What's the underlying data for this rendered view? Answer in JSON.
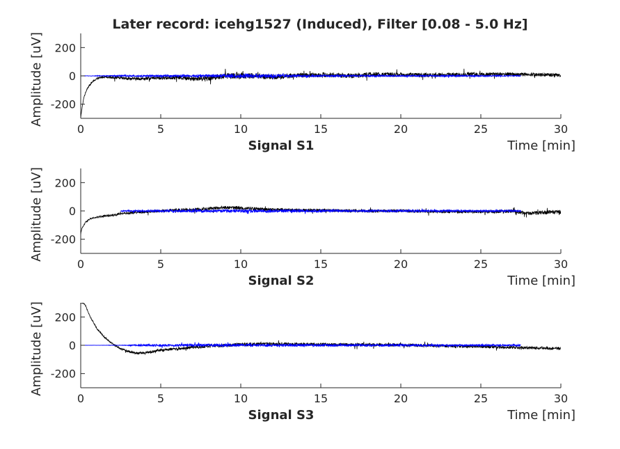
{
  "chart_data": {
    "type": "line",
    "title": "Later record: icehg1527 (Induced), Filter [0.08 - 5.0 Hz]",
    "x_unit_label": "Time [min]",
    "xlim": [
      0,
      30
    ],
    "xticks": [
      0,
      5,
      10,
      15,
      20,
      25,
      30
    ],
    "ylim": [
      -300,
      300
    ],
    "yticks": [
      -200,
      0,
      200
    ],
    "ylabel": "Amplitude [uV]",
    "colors": {
      "raw": "#000000",
      "filtered": "#0000ff",
      "axis": "#262626"
    },
    "panels": [
      {
        "xlabel": "Signal S1",
        "series": [
          {
            "color": "raw",
            "start_min": 0,
            "end_min": 30,
            "trend": [
              [
                0,
                -300
              ],
              [
                0.05,
                -250
              ],
              [
                0.2,
                -150
              ],
              [
                0.4,
                -90
              ],
              [
                0.7,
                -45
              ],
              [
                1,
                -20
              ],
              [
                1.5,
                -5
              ],
              [
                2,
                -10
              ],
              [
                2.5,
                -15
              ],
              [
                3,
                -20
              ],
              [
                4,
                -20
              ],
              [
                5,
                -15
              ],
              [
                6,
                -10
              ],
              [
                7,
                -20
              ],
              [
                8,
                -15
              ],
              [
                9,
                0
              ],
              [
                10,
                0
              ],
              [
                11,
                0
              ],
              [
                12,
                -10
              ],
              [
                13,
                0
              ],
              [
                14,
                5
              ],
              [
                15,
                8
              ],
              [
                16,
                5
              ],
              [
                17,
                0
              ],
              [
                18,
                10
              ],
              [
                20,
                8
              ],
              [
                22,
                5
              ],
              [
                24,
                10
              ],
              [
                26,
                12
              ],
              [
                28,
                10
              ],
              [
                30,
                5
              ]
            ],
            "noise": [
              [
                0,
                4
              ],
              [
                2,
                10
              ],
              [
                5,
                12
              ],
              [
                9,
                20
              ],
              [
                10,
                22
              ],
              [
                12,
                18
              ],
              [
                18,
                16
              ],
              [
                24,
                14
              ],
              [
                30,
                12
              ]
            ]
          },
          {
            "color": "filtered",
            "start_min": 0,
            "end_min": 27.5,
            "trend": [
              [
                0,
                0
              ],
              [
                27.5,
                0
              ]
            ],
            "noise": [
              [
                0,
                0.5
              ],
              [
                1,
                2
              ],
              [
                3,
                5
              ],
              [
                7,
                8
              ],
              [
                9,
                12
              ],
              [
                10,
                15
              ],
              [
                11,
                14
              ],
              [
                12,
                11
              ],
              [
                14,
                8
              ],
              [
                17,
                6
              ],
              [
                20,
                5
              ],
              [
                23,
                5
              ],
              [
                26,
                4
              ],
              [
                27.5,
                3
              ]
            ]
          }
        ]
      },
      {
        "xlabel": "Signal S2",
        "series": [
          {
            "color": "raw",
            "start_min": 0,
            "end_min": 30,
            "trend": [
              [
                0,
                -170
              ],
              [
                0.05,
                -130
              ],
              [
                0.3,
                -80
              ],
              [
                0.6,
                -55
              ],
              [
                1,
                -45
              ],
              [
                1.5,
                -35
              ],
              [
                2,
                -30
              ],
              [
                2.5,
                -20
              ],
              [
                3,
                -15
              ],
              [
                4,
                -5
              ],
              [
                5,
                0
              ],
              [
                6,
                5
              ],
              [
                7,
                8
              ],
              [
                8,
                15
              ],
              [
                9,
                25
              ],
              [
                10,
                20
              ],
              [
                11,
                15
              ],
              [
                12,
                8
              ],
              [
                14,
                5
              ],
              [
                16,
                3
              ],
              [
                18,
                0
              ],
              [
                20,
                0
              ],
              [
                22,
                -3
              ],
              [
                24,
                -5
              ],
              [
                26,
                -5
              ],
              [
                27,
                -3
              ],
              [
                28,
                -15
              ],
              [
                29,
                -10
              ],
              [
                30,
                -8
              ]
            ],
            "noise": [
              [
                0,
                4
              ],
              [
                2,
                8
              ],
              [
                5,
                10
              ],
              [
                10,
                12
              ],
              [
                20,
                10
              ],
              [
                27,
                12
              ],
              [
                30,
                14
              ]
            ]
          },
          {
            "color": "filtered",
            "start_min": 2.5,
            "end_min": 27.5,
            "trend": [
              [
                2.5,
                0
              ],
              [
                27.5,
                0
              ]
            ],
            "noise": [
              [
                2.5,
                3
              ],
              [
                4,
                8
              ],
              [
                8,
                10
              ],
              [
                12,
                10
              ],
              [
                18,
                8
              ],
              [
                22,
                8
              ],
              [
                27.5,
                6
              ]
            ]
          }
        ]
      },
      {
        "xlabel": "Signal S3",
        "series": [
          {
            "color": "raw",
            "start_min": 0,
            "end_min": 30,
            "trend": [
              [
                0,
                300
              ],
              [
                0.15,
                300
              ],
              [
                0.3,
                280
              ],
              [
                0.6,
                200
              ],
              [
                1,
                120
              ],
              [
                1.5,
                55
              ],
              [
                2,
                10
              ],
              [
                2.5,
                -25
              ],
              [
                3,
                -45
              ],
              [
                3.5,
                -55
              ],
              [
                4,
                -55
              ],
              [
                5,
                -35
              ],
              [
                6,
                -25
              ],
              [
                7,
                -15
              ],
              [
                8,
                -5
              ],
              [
                9,
                0
              ],
              [
                10,
                5
              ],
              [
                11,
                8
              ],
              [
                12,
                10
              ],
              [
                13,
                8
              ],
              [
                15,
                5
              ],
              [
                17,
                5
              ],
              [
                19,
                3
              ],
              [
                21,
                0
              ],
              [
                23,
                -5
              ],
              [
                25,
                -10
              ],
              [
                27,
                -15
              ],
              [
                28,
                -18
              ],
              [
                29,
                -20
              ],
              [
                30,
                -22
              ]
            ],
            "noise": [
              [
                0,
                3
              ],
              [
                3,
                8
              ],
              [
                5,
                10
              ],
              [
                10,
                12
              ],
              [
                20,
                10
              ],
              [
                30,
                10
              ]
            ]
          },
          {
            "color": "filtered",
            "start_min": 0,
            "end_min": 27.5,
            "trend": [
              [
                0,
                0
              ],
              [
                27.5,
                0
              ]
            ],
            "noise": [
              [
                0,
                0
              ],
              [
                2.5,
                1
              ],
              [
                4,
                7
              ],
              [
                8,
                9
              ],
              [
                12,
                9
              ],
              [
                18,
                8
              ],
              [
                22,
                7
              ],
              [
                27.5,
                6
              ]
            ]
          }
        ]
      }
    ]
  }
}
